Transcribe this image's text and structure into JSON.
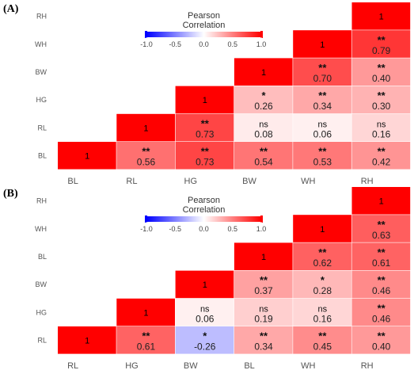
{
  "chart_data": [
    {
      "type": "heatmap",
      "panel_label": "(A)",
      "legend": {
        "title_line1": "Pearson",
        "title_line2": "Correlation",
        "ticks": [
          "-1.0",
          "-0.5",
          "0.0",
          "0.5",
          "1.0"
        ],
        "range": [
          -1,
          1
        ],
        "colors": {
          "low": "#0000ff",
          "mid": "#ffffff",
          "high": "#ff0000"
        }
      },
      "x_labels": [
        "BL",
        "RL",
        "HG",
        "BW",
        "WH",
        "RH"
      ],
      "y_labels_top_to_bottom": [
        "RH",
        "WH",
        "BW",
        "HG",
        "RL",
        "BL"
      ],
      "cells": [
        {
          "x": "RH",
          "y": "RH",
          "value": 1,
          "label": "1",
          "sig": ""
        },
        {
          "x": "WH",
          "y": "WH",
          "value": 1,
          "label": "1",
          "sig": ""
        },
        {
          "x": "RH",
          "y": "WH",
          "value": 0.79,
          "label": "0.79",
          "sig": "**"
        },
        {
          "x": "BW",
          "y": "BW",
          "value": 1,
          "label": "1",
          "sig": ""
        },
        {
          "x": "WH",
          "y": "BW",
          "value": 0.7,
          "label": "0.70",
          "sig": "**"
        },
        {
          "x": "RH",
          "y": "BW",
          "value": 0.4,
          "label": "0.40",
          "sig": "**"
        },
        {
          "x": "HG",
          "y": "HG",
          "value": 1,
          "label": "1",
          "sig": ""
        },
        {
          "x": "BW",
          "y": "HG",
          "value": 0.26,
          "label": "0.26",
          "sig": "*"
        },
        {
          "x": "WH",
          "y": "HG",
          "value": 0.34,
          "label": "0.34",
          "sig": "**"
        },
        {
          "x": "RH",
          "y": "HG",
          "value": 0.3,
          "label": "0.30",
          "sig": "**"
        },
        {
          "x": "RL",
          "y": "RL",
          "value": 1,
          "label": "1",
          "sig": ""
        },
        {
          "x": "HG",
          "y": "RL",
          "value": 0.73,
          "label": "0.73",
          "sig": "**"
        },
        {
          "x": "BW",
          "y": "RL",
          "value": 0.08,
          "label": "0.08",
          "sig": "ns"
        },
        {
          "x": "WH",
          "y": "RL",
          "value": 0.06,
          "label": "0.06",
          "sig": "ns"
        },
        {
          "x": "RH",
          "y": "RL",
          "value": 0.16,
          "label": "0.16",
          "sig": "ns"
        },
        {
          "x": "BL",
          "y": "BL",
          "value": 1,
          "label": "1",
          "sig": ""
        },
        {
          "x": "RL",
          "y": "BL",
          "value": 0.56,
          "label": "0.56",
          "sig": "**"
        },
        {
          "x": "HG",
          "y": "BL",
          "value": 0.73,
          "label": "0.73",
          "sig": "**"
        },
        {
          "x": "BW",
          "y": "BL",
          "value": 0.54,
          "label": "0.54",
          "sig": "**"
        },
        {
          "x": "WH",
          "y": "BL",
          "value": 0.53,
          "label": "0.53",
          "sig": "**"
        },
        {
          "x": "RH",
          "y": "BL",
          "value": 0.42,
          "label": "0.42",
          "sig": "**"
        }
      ]
    },
    {
      "type": "heatmap",
      "panel_label": "(B)",
      "legend": {
        "title_line1": "Pearson",
        "title_line2": "Correlation",
        "ticks": [
          "-1.0",
          "-0.5",
          "0.0",
          "0.5",
          "1.0"
        ],
        "range": [
          -1,
          1
        ],
        "colors": {
          "low": "#0000ff",
          "mid": "#ffffff",
          "high": "#ff0000"
        }
      },
      "x_labels": [
        "RL",
        "HG",
        "BW",
        "BL",
        "WH",
        "RH"
      ],
      "y_labels_top_to_bottom": [
        "RH",
        "WH",
        "BL",
        "BW",
        "HG",
        "RL"
      ],
      "cells": [
        {
          "x": "RH",
          "y": "RH",
          "value": 1,
          "label": "1",
          "sig": ""
        },
        {
          "x": "WH",
          "y": "WH",
          "value": 1,
          "label": "1",
          "sig": ""
        },
        {
          "x": "RH",
          "y": "WH",
          "value": 0.63,
          "label": "0.63",
          "sig": "**"
        },
        {
          "x": "BL",
          "y": "BL",
          "value": 1,
          "label": "1",
          "sig": ""
        },
        {
          "x": "WH",
          "y": "BL",
          "value": 0.62,
          "label": "0.62",
          "sig": "**"
        },
        {
          "x": "RH",
          "y": "BL",
          "value": 0.61,
          "label": "0.61",
          "sig": "**"
        },
        {
          "x": "BW",
          "y": "BW",
          "value": 1,
          "label": "1",
          "sig": ""
        },
        {
          "x": "BL",
          "y": "BW",
          "value": 0.37,
          "label": "0.37",
          "sig": "**"
        },
        {
          "x": "WH",
          "y": "BW",
          "value": 0.28,
          "label": "0.28",
          "sig": "*"
        },
        {
          "x": "RH",
          "y": "BW",
          "value": 0.46,
          "label": "0.46",
          "sig": "**"
        },
        {
          "x": "HG",
          "y": "HG",
          "value": 1,
          "label": "1",
          "sig": ""
        },
        {
          "x": "BW",
          "y": "HG",
          "value": 0.06,
          "label": "0.06",
          "sig": "ns"
        },
        {
          "x": "BL",
          "y": "HG",
          "value": 0.19,
          "label": "0.19",
          "sig": "ns"
        },
        {
          "x": "WH",
          "y": "HG",
          "value": 0.16,
          "label": "0.16",
          "sig": "ns"
        },
        {
          "x": "RH",
          "y": "HG",
          "value": 0.46,
          "label": "0.46",
          "sig": "**"
        },
        {
          "x": "RL",
          "y": "RL",
          "value": 1,
          "label": "1",
          "sig": ""
        },
        {
          "x": "HG",
          "y": "RL",
          "value": 0.61,
          "label": "0.61",
          "sig": "**"
        },
        {
          "x": "BW",
          "y": "RL",
          "value": -0.26,
          "label": "-0.26",
          "sig": "*"
        },
        {
          "x": "BL",
          "y": "RL",
          "value": 0.34,
          "label": "0.34",
          "sig": "**"
        },
        {
          "x": "WH",
          "y": "RL",
          "value": 0.45,
          "label": "0.45",
          "sig": "**"
        },
        {
          "x": "RH",
          "y": "RL",
          "value": 0.4,
          "label": "0.40",
          "sig": "**"
        }
      ]
    }
  ]
}
